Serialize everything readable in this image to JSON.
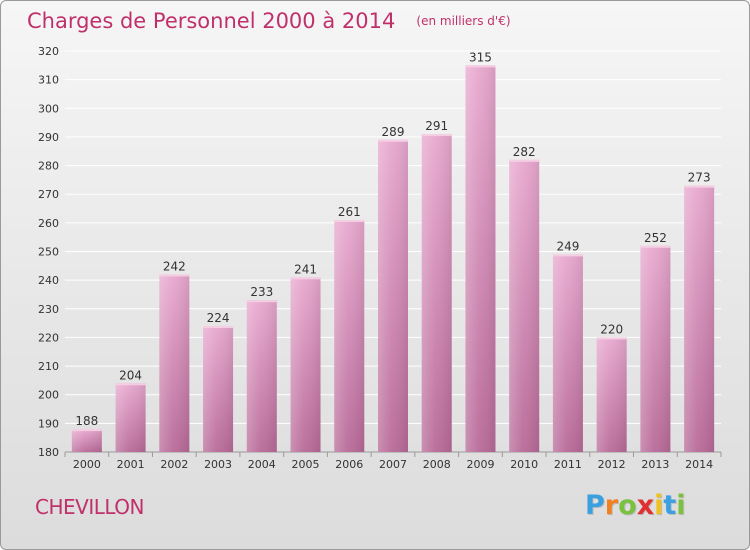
{
  "title": "Charges de Personnel 2000 à 2014",
  "subtitle": "(en milliers d'€)",
  "commune": "CHEVILLON",
  "logo": {
    "text": "Proxiti",
    "letter_colors": [
      "#3aa0e0",
      "#f08020",
      "#7cc040",
      "#e03030",
      "#f0c020",
      "#3aa0e0",
      "#7cc040"
    ]
  },
  "colors": {
    "title": "#c0306a",
    "bar_top": "#e8a8cf",
    "bar_bottom": "#b86a98",
    "grid": "#ffffff",
    "axis_text": "#333333"
  },
  "chart_data": {
    "type": "bar",
    "title": "Charges de Personnel 2000 à 2014",
    "subtitle": "(en milliers d'€)",
    "categories": [
      "2000",
      "2001",
      "2002",
      "2003",
      "2004",
      "2005",
      "2006",
      "2007",
      "2008",
      "2009",
      "2010",
      "2011",
      "2012",
      "2013",
      "2014"
    ],
    "values": [
      188,
      204,
      242,
      224,
      233,
      241,
      261,
      289,
      291,
      315,
      282,
      249,
      220,
      252,
      273
    ],
    "ylim": [
      180,
      320
    ],
    "yticks": [
      180,
      190,
      200,
      210,
      220,
      230,
      240,
      250,
      260,
      270,
      280,
      290,
      300,
      310,
      320
    ],
    "grid": true,
    "data_labels": true
  }
}
